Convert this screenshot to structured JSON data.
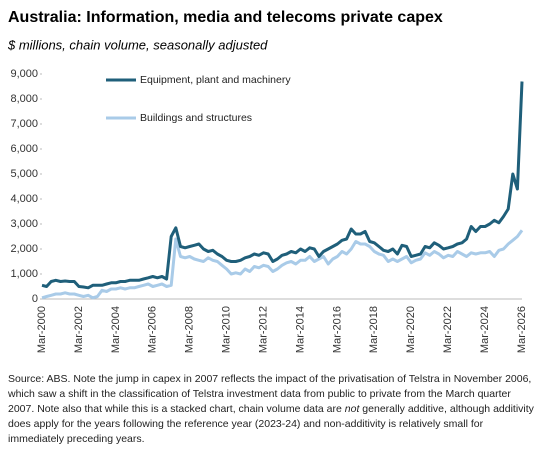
{
  "chart_data": {
    "type": "line",
    "title": "Australia: Information, media and telecoms private capex",
    "subtitle": "$ millions,  chain volume,  seasonally adjusted",
    "categories": [
      "Mar-2000",
      null,
      null,
      null,
      null,
      null,
      null,
      null,
      "Mar-2002",
      null,
      null,
      null,
      null,
      null,
      null,
      null,
      "Mar-2004",
      null,
      null,
      null,
      null,
      null,
      null,
      null,
      "Mar-2006",
      null,
      null,
      null,
      null,
      null,
      null,
      null,
      "Mar-2008",
      null,
      null,
      null,
      null,
      null,
      null,
      null,
      "Mar-2010",
      null,
      null,
      null,
      null,
      null,
      null,
      null,
      "Mar-2012",
      null,
      null,
      null,
      null,
      null,
      null,
      null,
      "Mar-2014",
      null,
      null,
      null,
      null,
      null,
      null,
      null,
      "Mar-2016",
      null,
      null,
      null,
      null,
      null,
      null,
      null,
      "Mar-2018",
      null,
      null,
      null,
      null,
      null,
      null,
      null,
      "Mar-2020",
      null,
      null,
      null,
      null,
      null,
      null,
      null,
      "Mar-2022",
      null,
      null,
      null,
      null,
      null,
      null,
      null,
      "Mar-2024",
      null,
      null,
      null,
      null,
      null,
      null,
      null,
      "Mar-2026"
    ],
    "series": [
      {
        "name": "Equipment, plant and machinery",
        "color": "#1f5f7a",
        "values": [
          550,
          500,
          700,
          750,
          700,
          720,
          700,
          700,
          500,
          480,
          450,
          550,
          550,
          550,
          600,
          650,
          650,
          700,
          700,
          750,
          750,
          750,
          800,
          850,
          900,
          850,
          900,
          800,
          2500,
          2850,
          2100,
          2050,
          2100,
          2150,
          2200,
          2000,
          1900,
          1950,
          1800,
          1700,
          1550,
          1500,
          1500,
          1550,
          1650,
          1700,
          1800,
          1750,
          1850,
          1800,
          1500,
          1600,
          1750,
          1800,
          1900,
          1850,
          2000,
          1900,
          2050,
          2000,
          1700,
          1900,
          2000,
          2100,
          2200,
          2350,
          2400,
          2800,
          2600,
          2600,
          2700,
          2300,
          2250,
          2100,
          1950,
          1900,
          2000,
          1800,
          2150,
          2100,
          1700,
          1750,
          1800,
          2100,
          2050,
          2250,
          2150,
          2000,
          2050,
          2100,
          2200,
          2250,
          2400,
          2900,
          2700,
          2900,
          2900,
          3000,
          3150,
          3050,
          3300,
          3600,
          5000,
          4400,
          8700
        ]
      },
      {
        "name": "Buildings and structures",
        "color": "#a9cbe8",
        "values": [
          50,
          100,
          150,
          200,
          200,
          250,
          200,
          200,
          150,
          100,
          150,
          50,
          100,
          350,
          300,
          400,
          400,
          450,
          400,
          450,
          450,
          500,
          550,
          600,
          500,
          550,
          600,
          500,
          550,
          2400,
          1700,
          1650,
          1700,
          1600,
          1550,
          1500,
          1650,
          1550,
          1500,
          1350,
          1200,
          1000,
          1050,
          1000,
          1200,
          1100,
          1300,
          1250,
          1350,
          1300,
          1100,
          1200,
          1350,
          1450,
          1500,
          1400,
          1550,
          1550,
          1700,
          1500,
          1600,
          1700,
          1400,
          1600,
          1700,
          1900,
          1800,
          2000,
          2300,
          2200,
          2200,
          2100,
          1900,
          1800,
          1750,
          1500,
          1600,
          1500,
          1600,
          1700,
          1450,
          1550,
          1600,
          1850,
          1750,
          1900,
          1800,
          1650,
          1750,
          1700,
          1900,
          1800,
          1700,
          1850,
          1800,
          1850,
          1850,
          1900,
          1700,
          1950,
          2000,
          2200,
          2350,
          2500,
          2750
        ]
      }
    ],
    "ylim": [
      0,
      9000
    ],
    "yticks": [
      0,
      {
        "value": 1000,
        "label": "1,000"
      },
      {
        "value": 2000,
        "label": "2,000"
      },
      {
        "value": 3000,
        "label": "3,000"
      },
      {
        "value": 4000,
        "label": "4,000"
      },
      {
        "value": 5000,
        "label": "5,000"
      },
      {
        "value": 6000,
        "label": "6,000"
      },
      {
        "value": 7000,
        "label": "7,000"
      },
      {
        "value": 8000,
        "label": "8,000"
      },
      {
        "value": 9000,
        "label": "9,000"
      }
    ],
    "grid": false,
    "note": [
      "Source: ABS. Note the jump in capex in 2007 reflects the impact of the privatisation of Telstra in November 2006, which saw a shift in the classification of Telstra investment data from public to private from the March quarter 2007. Note also that while this is a stacked chart,  chain volume data are ",
      "not",
      " generally additive, although additivity does apply for the years following the reference year (2023-24) and non-additivity is relatively small for immediately preceding years."
    ]
  }
}
